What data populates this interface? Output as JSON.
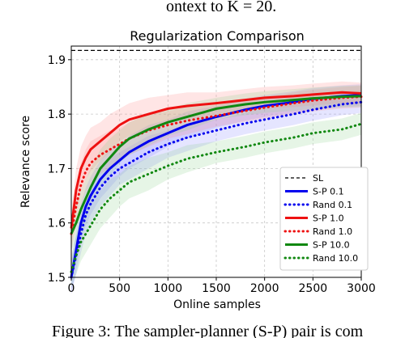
{
  "top_text": "ontext to K = 20.",
  "caption": "Figure 3: The sampler-planner (S-P) pair is com",
  "colors": {
    "black": "#000000",
    "blue": "#0000ee",
    "red": "#ee1111",
    "green": "#118811",
    "blue_band": "#8a8aff",
    "red_band": "#ff8a8a",
    "green_band": "#8fd18f"
  },
  "chart_data": {
    "type": "line",
    "title": "Regularization Comparison",
    "xlabel": "Online samples",
    "ylabel": "Relevance score",
    "xlim": [
      0,
      3000
    ],
    "ylim": [
      1.5,
      1.925
    ],
    "xticks": [
      0,
      500,
      1000,
      1500,
      2000,
      2500,
      3000
    ],
    "yticks": [
      1.5,
      1.6,
      1.7,
      1.8,
      1.9
    ],
    "ytick_labels": [
      "1.5",
      "1.6",
      "1.7",
      "1.8",
      "1.9"
    ],
    "grid": true,
    "legend_position": "lower-right",
    "series": [
      {
        "name": "SL",
        "style": "dashed",
        "color": "#000000",
        "x": [
          0,
          3000
        ],
        "y": [
          1.917,
          1.917
        ]
      },
      {
        "name": "S-P 0.1",
        "style": "solid",
        "color": "#0000ee",
        "band_color": "#8a8aff",
        "x": [
          0,
          50,
          100,
          150,
          200,
          300,
          400,
          500,
          600,
          800,
          1000,
          1200,
          1500,
          1800,
          2000,
          2300,
          2500,
          2800,
          3000
        ],
        "y": [
          1.5,
          1.55,
          1.6,
          1.63,
          1.65,
          1.68,
          1.7,
          1.715,
          1.73,
          1.75,
          1.765,
          1.78,
          1.795,
          1.808,
          1.815,
          1.822,
          1.828,
          1.833,
          1.835
        ],
        "band": [
          0.03,
          0.035,
          0.035,
          0.035,
          0.035,
          0.035,
          0.035,
          0.03,
          0.03,
          0.03,
          0.025,
          0.025,
          0.02,
          0.02,
          0.02,
          0.02,
          0.02,
          0.02,
          0.02
        ]
      },
      {
        "name": "Rand 0.1",
        "style": "dotted",
        "color": "#0000ee",
        "band_color": "#8a8aff",
        "x": [
          0,
          50,
          100,
          150,
          200,
          300,
          400,
          500,
          600,
          800,
          1000,
          1200,
          1500,
          1800,
          2000,
          2300,
          2500,
          2800,
          3000
        ],
        "y": [
          1.5,
          1.54,
          1.58,
          1.615,
          1.635,
          1.665,
          1.685,
          1.7,
          1.71,
          1.73,
          1.745,
          1.757,
          1.77,
          1.783,
          1.79,
          1.8,
          1.808,
          1.818,
          1.822
        ],
        "band": [
          0.03,
          0.035,
          0.035,
          0.035,
          0.035,
          0.035,
          0.035,
          0.03,
          0.03,
          0.03,
          0.025,
          0.025,
          0.02,
          0.02,
          0.02,
          0.02,
          0.02,
          0.02,
          0.02
        ]
      },
      {
        "name": "S-P 1.0",
        "style": "solid",
        "color": "#ee1111",
        "band_color": "#ff8a8a",
        "x": [
          0,
          50,
          100,
          150,
          200,
          300,
          400,
          500,
          600,
          800,
          1000,
          1200,
          1500,
          1800,
          2000,
          2300,
          2500,
          2800,
          3000
        ],
        "y": [
          1.59,
          1.66,
          1.7,
          1.72,
          1.735,
          1.75,
          1.765,
          1.78,
          1.79,
          1.8,
          1.81,
          1.815,
          1.82,
          1.826,
          1.83,
          1.833,
          1.836,
          1.84,
          1.838
        ],
        "band": [
          0.03,
          0.04,
          0.04,
          0.04,
          0.04,
          0.035,
          0.035,
          0.03,
          0.03,
          0.03,
          0.025,
          0.025,
          0.02,
          0.02,
          0.02,
          0.02,
          0.02,
          0.02,
          0.02
        ]
      },
      {
        "name": "Rand 1.0",
        "style": "dotted",
        "color": "#ee1111",
        "band_color": "#ff8a8a",
        "x": [
          0,
          50,
          100,
          150,
          200,
          300,
          400,
          500,
          600,
          800,
          1000,
          1200,
          1500,
          1800,
          2000,
          2300,
          2500,
          2800,
          3000
        ],
        "y": [
          1.58,
          1.63,
          1.67,
          1.695,
          1.71,
          1.725,
          1.735,
          1.745,
          1.755,
          1.77,
          1.78,
          1.788,
          1.797,
          1.806,
          1.812,
          1.82,
          1.825,
          1.83,
          1.832
        ],
        "band": [
          0.03,
          0.04,
          0.04,
          0.04,
          0.04,
          0.035,
          0.035,
          0.03,
          0.03,
          0.03,
          0.025,
          0.025,
          0.02,
          0.02,
          0.02,
          0.02,
          0.02,
          0.02,
          0.02
        ]
      },
      {
        "name": "S-P 10.0",
        "style": "solid",
        "color": "#118811",
        "band_color": "#8fd18f",
        "x": [
          0,
          50,
          100,
          150,
          200,
          300,
          400,
          500,
          600,
          800,
          1000,
          1200,
          1500,
          1800,
          2000,
          2300,
          2500,
          2800,
          3000
        ],
        "y": [
          1.58,
          1.6,
          1.625,
          1.645,
          1.665,
          1.7,
          1.72,
          1.74,
          1.755,
          1.772,
          1.785,
          1.795,
          1.81,
          1.818,
          1.822,
          1.826,
          1.829,
          1.832,
          1.833
        ],
        "band": [
          0.03,
          0.035,
          0.035,
          0.035,
          0.035,
          0.035,
          0.035,
          0.03,
          0.03,
          0.03,
          0.025,
          0.025,
          0.02,
          0.02,
          0.02,
          0.02,
          0.02,
          0.02,
          0.02
        ]
      },
      {
        "name": "Rand 10.0",
        "style": "dotted",
        "color": "#118811",
        "band_color": "#8fd18f",
        "x": [
          0,
          50,
          100,
          150,
          200,
          300,
          400,
          500,
          600,
          800,
          1000,
          1200,
          1500,
          1800,
          2000,
          2300,
          2500,
          2800,
          3000
        ],
        "y": [
          1.51,
          1.54,
          1.565,
          1.58,
          1.595,
          1.625,
          1.645,
          1.66,
          1.675,
          1.69,
          1.705,
          1.718,
          1.73,
          1.74,
          1.748,
          1.757,
          1.765,
          1.772,
          1.782
        ],
        "band": [
          0.03,
          0.035,
          0.035,
          0.035,
          0.035,
          0.035,
          0.035,
          0.03,
          0.03,
          0.03,
          0.025,
          0.025,
          0.02,
          0.02,
          0.02,
          0.02,
          0.02,
          0.02,
          0.02
        ]
      }
    ]
  }
}
